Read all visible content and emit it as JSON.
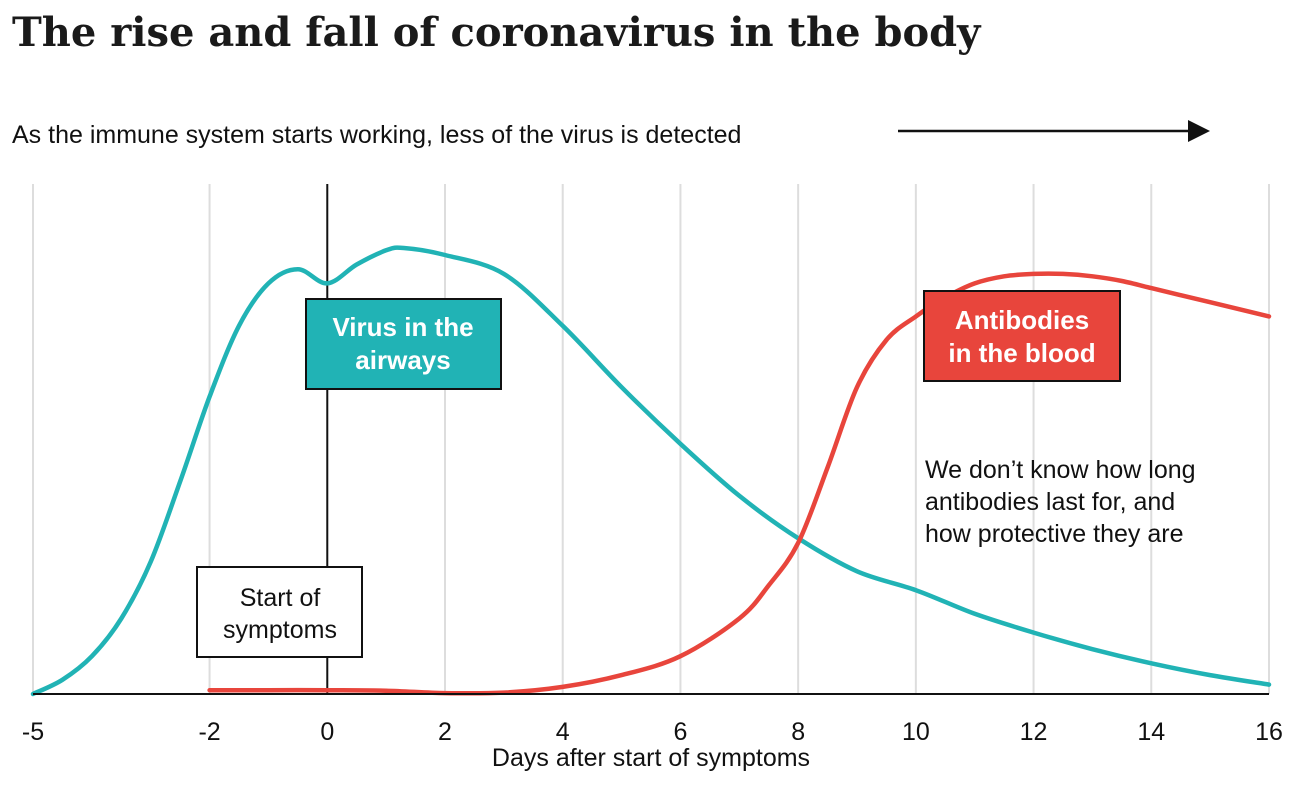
{
  "chart_data": {
    "type": "line",
    "title": "The rise and fall of coronavirus in the body",
    "subtitle": "As the immune system starts working, less of the virus is detected",
    "xlabel": "Days after start of symptoms",
    "ylabel": "",
    "xlim": [
      -5,
      16
    ],
    "ylim": [
      0,
      100
    ],
    "x_ticks": [
      -5,
      -2,
      0,
      2,
      4,
      6,
      8,
      10,
      12,
      14,
      16
    ],
    "grid": "vertical",
    "marker_line": {
      "x": 0
    },
    "series": [
      {
        "name": "Virus in the airways",
        "color": "#21b3b5",
        "x": [
          -5,
          -4.5,
          -4,
          -3.5,
          -3,
          -2.5,
          -2,
          -1.5,
          -1,
          -0.5,
          0,
          0.5,
          1,
          1.3,
          2,
          3,
          4,
          5,
          6,
          7,
          8,
          9,
          10,
          11,
          12,
          13,
          14,
          15,
          16
        ],
        "y": [
          0,
          3,
          8,
          16,
          28,
          45,
          63,
          78,
          87,
          90,
          87,
          91,
          94,
          94.5,
          93,
          89,
          78,
          65,
          53,
          42,
          33,
          26,
          22,
          17,
          13,
          9.5,
          6.5,
          4,
          2
        ]
      },
      {
        "name": "Antibodies in the blood",
        "color": "#e8453c",
        "x": [
          -2,
          -1,
          0,
          1,
          2,
          3,
          4,
          5,
          6,
          7,
          7.5,
          8,
          8.5,
          9,
          9.5,
          10,
          10.5,
          11,
          11.5,
          12,
          12.5,
          13,
          13.5,
          14,
          14.5,
          15,
          15.5,
          16
        ],
        "y": [
          0.8,
          0.8,
          0.8,
          0.7,
          0.2,
          0.3,
          1.5,
          4,
          8,
          16,
          23,
          32,
          48,
          65,
          75,
          80,
          84,
          87,
          88.5,
          89,
          89,
          88.5,
          87.5,
          86,
          84.5,
          83,
          81.5,
          80
        ]
      }
    ],
    "annotations": {
      "virus_label": [
        "Virus in the",
        "airways"
      ],
      "antibody_label": [
        "Antibodies",
        "in the blood"
      ],
      "symptoms_label": [
        "Start of",
        "symptoms"
      ],
      "note": [
        "We don’t know how long",
        "antibodies last for, and",
        "how protective they are"
      ]
    }
  },
  "colors": {
    "virus": "#21b3b5",
    "antibodies": "#e8453c",
    "grid": "#dddddd",
    "axis": "#111111"
  },
  "icons": {
    "subtitle_arrow": "right-arrow-icon"
  }
}
